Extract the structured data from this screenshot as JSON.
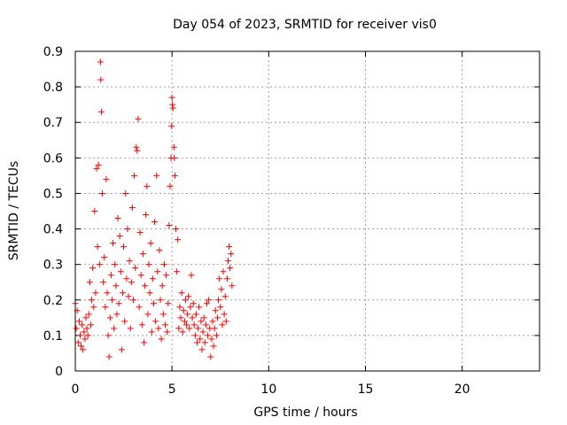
{
  "chart_data": {
    "type": "scatter",
    "title": "Day 054 of 2023, SRMTID for receiver vis0",
    "xlabel": "GPS time / hours",
    "ylabel": "SRMTID / TECUs",
    "xlim": [
      0,
      24
    ],
    "ylim": [
      0,
      0.9
    ],
    "xticks": [
      0,
      5,
      10,
      15,
      20
    ],
    "yticks": [
      0,
      0.1,
      0.2,
      0.3,
      0.4,
      0.5,
      0.6,
      0.7,
      0.8,
      0.9
    ],
    "xtick_labels": [
      "0",
      "5",
      "10",
      "15",
      "20"
    ],
    "ytick_labels": [
      "0",
      "0.1",
      "0.2",
      "0.3",
      "0.4",
      "0.5",
      "0.6",
      "0.7",
      "0.8",
      "0.9"
    ],
    "grid": true,
    "marker": "+",
    "marker_color": "#ff0000",
    "series": [
      {
        "name": "SRMTID",
        "points": [
          [
            0.0,
            0.19
          ],
          [
            0.05,
            0.12
          ],
          [
            0.1,
            0.17
          ],
          [
            0.15,
            0.08
          ],
          [
            0.2,
            0.14
          ],
          [
            0.25,
            0.1
          ],
          [
            0.3,
            0.07
          ],
          [
            0.35,
            0.13
          ],
          [
            0.4,
            0.06
          ],
          [
            0.45,
            0.11
          ],
          [
            0.5,
            0.09
          ],
          [
            0.55,
            0.15
          ],
          [
            0.6,
            0.12
          ],
          [
            0.65,
            0.1
          ],
          [
            0.7,
            0.16
          ],
          [
            0.75,
            0.25
          ],
          [
            0.8,
            0.13
          ],
          [
            0.85,
            0.2
          ],
          [
            0.9,
            0.29
          ],
          [
            0.95,
            0.18
          ],
          [
            1.0,
            0.45
          ],
          [
            1.05,
            0.22
          ],
          [
            1.1,
            0.57
          ],
          [
            1.15,
            0.35
          ],
          [
            1.2,
            0.58
          ],
          [
            1.25,
            0.3
          ],
          [
            1.3,
            0.87
          ],
          [
            1.32,
            0.82
          ],
          [
            1.35,
            0.73
          ],
          [
            1.4,
            0.5
          ],
          [
            1.45,
            0.25
          ],
          [
            1.5,
            0.32
          ],
          [
            1.55,
            0.18
          ],
          [
            1.6,
            0.54
          ],
          [
            1.65,
            0.22
          ],
          [
            1.7,
            0.1
          ],
          [
            1.75,
            0.04
          ],
          [
            1.8,
            0.15
          ],
          [
            1.85,
            0.27
          ],
          [
            1.9,
            0.2
          ],
          [
            1.95,
            0.36
          ],
          [
            2.0,
            0.12
          ],
          [
            2.05,
            0.3
          ],
          [
            2.1,
            0.24
          ],
          [
            2.15,
            0.16
          ],
          [
            2.2,
            0.43
          ],
          [
            2.25,
            0.19
          ],
          [
            2.3,
            0.38
          ],
          [
            2.35,
            0.28
          ],
          [
            2.4,
            0.06
          ],
          [
            2.45,
            0.22
          ],
          [
            2.5,
            0.35
          ],
          [
            2.55,
            0.14
          ],
          [
            2.6,
            0.5
          ],
          [
            2.65,
            0.26
          ],
          [
            2.7,
            0.4
          ],
          [
            2.75,
            0.21
          ],
          [
            2.8,
            0.31
          ],
          [
            2.85,
            0.12
          ],
          [
            2.9,
            0.25
          ],
          [
            2.95,
            0.46
          ],
          [
            3.0,
            0.2
          ],
          [
            3.05,
            0.55
          ],
          [
            3.1,
            0.29
          ],
          [
            3.15,
            0.63
          ],
          [
            3.2,
            0.62
          ],
          [
            3.25,
            0.71
          ],
          [
            3.3,
            0.18
          ],
          [
            3.35,
            0.39
          ],
          [
            3.4,
            0.27
          ],
          [
            3.45,
            0.13
          ],
          [
            3.5,
            0.33
          ],
          [
            3.55,
            0.08
          ],
          [
            3.6,
            0.24
          ],
          [
            3.65,
            0.44
          ],
          [
            3.7,
            0.52
          ],
          [
            3.75,
            0.16
          ],
          [
            3.8,
            0.3
          ],
          [
            3.85,
            0.22
          ],
          [
            3.9,
            0.36
          ],
          [
            3.95,
            0.11
          ],
          [
            4.0,
            0.26
          ],
          [
            4.05,
            0.19
          ],
          [
            4.1,
            0.42
          ],
          [
            4.15,
            0.14
          ],
          [
            4.2,
            0.55
          ],
          [
            4.25,
            0.28
          ],
          [
            4.3,
            0.12
          ],
          [
            4.35,
            0.34
          ],
          [
            4.4,
            0.2
          ],
          [
            4.45,
            0.09
          ],
          [
            4.5,
            0.24
          ],
          [
            4.55,
            0.16
          ],
          [
            4.6,
            0.3
          ],
          [
            4.65,
            0.13
          ],
          [
            4.7,
            0.27
          ],
          [
            4.75,
            0.11
          ],
          [
            4.8,
            0.19
          ],
          [
            4.85,
            0.41
          ],
          [
            4.9,
            0.52
          ],
          [
            4.95,
            0.6
          ],
          [
            4.98,
            0.69
          ],
          [
            5.0,
            0.77
          ],
          [
            5.02,
            0.75
          ],
          [
            5.05,
            0.74
          ],
          [
            5.1,
            0.63
          ],
          [
            5.12,
            0.6
          ],
          [
            5.15,
            0.55
          ],
          [
            5.2,
            0.4
          ],
          [
            5.25,
            0.28
          ],
          [
            5.3,
            0.37
          ],
          [
            5.35,
            0.12
          ],
          [
            5.4,
            0.18
          ],
          [
            5.45,
            0.15
          ],
          [
            5.5,
            0.22
          ],
          [
            5.55,
            0.11
          ],
          [
            5.6,
            0.17
          ],
          [
            5.65,
            0.14
          ],
          [
            5.7,
            0.2
          ],
          [
            5.75,
            0.13
          ],
          [
            5.8,
            0.16
          ],
          [
            5.85,
            0.21
          ],
          [
            5.9,
            0.12
          ],
          [
            5.95,
            0.18
          ],
          [
            6.0,
            0.27
          ],
          [
            6.05,
            0.15
          ],
          [
            6.1,
            0.19
          ],
          [
            6.15,
            0.13
          ],
          [
            6.2,
            0.1
          ],
          [
            6.25,
            0.16
          ],
          [
            6.3,
            0.08
          ],
          [
            6.35,
            0.12
          ],
          [
            6.4,
            0.18
          ],
          [
            6.45,
            0.09
          ],
          [
            6.5,
            0.14
          ],
          [
            6.55,
            0.06
          ],
          [
            6.6,
            0.11
          ],
          [
            6.65,
            0.15
          ],
          [
            6.7,
            0.08
          ],
          [
            6.75,
            0.13
          ],
          [
            6.8,
            0.19
          ],
          [
            6.85,
            0.1
          ],
          [
            6.9,
            0.2
          ],
          [
            6.95,
            0.12
          ],
          [
            7.0,
            0.04
          ],
          [
            7.05,
            0.09
          ],
          [
            7.1,
            0.14
          ],
          [
            7.15,
            0.07
          ],
          [
            7.2,
            0.12
          ],
          [
            7.25,
            0.17
          ],
          [
            7.3,
            0.1
          ],
          [
            7.35,
            0.15
          ],
          [
            7.4,
            0.2
          ],
          [
            7.45,
            0.26
          ],
          [
            7.5,
            0.18
          ],
          [
            7.55,
            0.23
          ],
          [
            7.6,
            0.13
          ],
          [
            7.65,
            0.28
          ],
          [
            7.7,
            0.16
          ],
          [
            7.75,
            0.21
          ],
          [
            7.8,
            0.14
          ],
          [
            7.85,
            0.26
          ],
          [
            7.9,
            0.31
          ],
          [
            7.95,
            0.35
          ],
          [
            8.0,
            0.29
          ],
          [
            8.05,
            0.33
          ],
          [
            8.1,
            0.24
          ]
        ]
      }
    ]
  }
}
